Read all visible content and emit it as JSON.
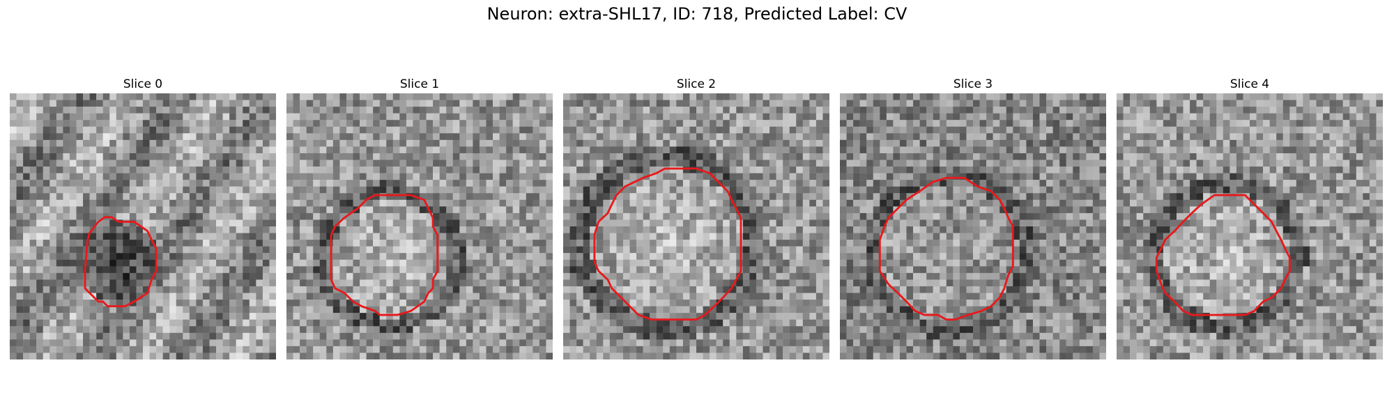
{
  "figure": {
    "title": "Neuron: extra-SHL17, ID: 718, Predicted Label: CV",
    "outline_color": "#e8191c"
  },
  "panels": [
    {
      "title": "Slice 0",
      "region": "dark",
      "outline": [
        [
          13.3,
          19.3
        ],
        [
          14.3,
          18.6
        ],
        [
          15.3,
          18.6
        ],
        [
          16.3,
          19.3
        ],
        [
          18.7,
          19.3
        ],
        [
          20.7,
          20.7
        ],
        [
          21.3,
          22
        ],
        [
          22,
          23.3
        ],
        [
          22,
          26.7
        ],
        [
          21.3,
          28
        ],
        [
          20.7,
          30
        ],
        [
          18.7,
          31.3
        ],
        [
          17.3,
          32
        ],
        [
          14.7,
          32
        ],
        [
          14,
          31.3
        ],
        [
          13.3,
          31.3
        ],
        [
          12,
          30
        ],
        [
          11.3,
          29.3
        ],
        [
          11.3,
          26.7
        ],
        [
          11.7,
          22
        ],
        [
          12,
          21
        ]
      ]
    },
    {
      "title": "Slice 1",
      "region": "bright",
      "outline": [
        [
          12,
          16
        ],
        [
          13.3,
          15.3
        ],
        [
          18.7,
          15.3
        ],
        [
          20.7,
          16
        ],
        [
          21.3,
          17.3
        ],
        [
          22,
          18.7
        ],
        [
          22,
          20
        ],
        [
          22.7,
          21.3
        ],
        [
          22.7,
          26.7
        ],
        [
          22,
          28
        ],
        [
          22,
          29.3
        ],
        [
          21.3,
          30
        ],
        [
          20.7,
          31.3
        ],
        [
          18.7,
          32.7
        ],
        [
          16.7,
          33.3
        ],
        [
          14,
          33.3
        ],
        [
          13.3,
          32.7
        ],
        [
          11.3,
          32
        ],
        [
          10,
          31.3
        ],
        [
          8.7,
          30
        ],
        [
          7.3,
          29.3
        ],
        [
          6.7,
          28
        ],
        [
          6.7,
          21.3
        ],
        [
          7.3,
          20
        ],
        [
          8.7,
          18.7
        ],
        [
          10.7,
          17.3
        ]
      ]
    },
    {
      "title": "Slice 2",
      "region": "bright",
      "outline": [
        [
          14,
          12
        ],
        [
          15.3,
          11.3
        ],
        [
          20,
          11.3
        ],
        [
          22,
          12
        ],
        [
          23.3,
          13.3
        ],
        [
          24.7,
          14.7
        ],
        [
          25.3,
          16
        ],
        [
          26,
          17.3
        ],
        [
          26.7,
          18.7
        ],
        [
          26.7,
          26.7
        ],
        [
          26,
          28
        ],
        [
          25.3,
          29.3
        ],
        [
          24,
          30.7
        ],
        [
          22.7,
          32
        ],
        [
          21.3,
          33.3
        ],
        [
          20,
          34
        ],
        [
          13.3,
          34
        ],
        [
          11.3,
          33.3
        ],
        [
          10,
          32
        ],
        [
          8.7,
          30.7
        ],
        [
          7.3,
          29.3
        ],
        [
          6.7,
          28
        ],
        [
          5.3,
          26.7
        ],
        [
          4.7,
          25.3
        ],
        [
          4.7,
          21.3
        ],
        [
          5.3,
          19.3
        ],
        [
          6.7,
          18
        ],
        [
          7.3,
          16.7
        ],
        [
          8,
          15.3
        ],
        [
          9.3,
          14
        ],
        [
          12,
          12.7
        ]
      ]
    },
    {
      "title": "Slice 3",
      "region": "mixed",
      "outline": [
        [
          14,
          13.3
        ],
        [
          16,
          12.7
        ],
        [
          18.7,
          12.7
        ],
        [
          20.7,
          14
        ],
        [
          22.7,
          14.7
        ],
        [
          24,
          16
        ],
        [
          24.7,
          17.3
        ],
        [
          25.3,
          18.7
        ],
        [
          26,
          20
        ],
        [
          26,
          26
        ],
        [
          25.3,
          27.3
        ],
        [
          24.7,
          29.3
        ],
        [
          24,
          30.7
        ],
        [
          22.7,
          32
        ],
        [
          21.3,
          32.7
        ],
        [
          19.3,
          33.3
        ],
        [
          17.3,
          34
        ],
        [
          16,
          34
        ],
        [
          14.7,
          33.3
        ],
        [
          12.7,
          33.3
        ],
        [
          11.3,
          32.7
        ],
        [
          10,
          31.3
        ],
        [
          8.7,
          30
        ],
        [
          7.3,
          28.7
        ],
        [
          6,
          26.7
        ],
        [
          6,
          22
        ],
        [
          6.7,
          20
        ],
        [
          7.3,
          18.7
        ],
        [
          8.7,
          17.3
        ],
        [
          10,
          16
        ],
        [
          12,
          14.7
        ]
      ]
    },
    {
      "title": "Slice 4",
      "region": "bright",
      "outline": [
        [
          14.7,
          15.3
        ],
        [
          17.3,
          15.3
        ],
        [
          19.3,
          15.3
        ],
        [
          20.7,
          16.7
        ],
        [
          22,
          18
        ],
        [
          23.3,
          19.3
        ],
        [
          24,
          20.7
        ],
        [
          24.7,
          22
        ],
        [
          25.3,
          23.3
        ],
        [
          26,
          24.7
        ],
        [
          26,
          26.7
        ],
        [
          25.3,
          28
        ],
        [
          24.7,
          29.3
        ],
        [
          23.3,
          30.7
        ],
        [
          22,
          31.3
        ],
        [
          20.7,
          32.7
        ],
        [
          19.3,
          33.3
        ],
        [
          11.3,
          33.3
        ],
        [
          10,
          32.7
        ],
        [
          8.7,
          31.3
        ],
        [
          7.3,
          30
        ],
        [
          6.7,
          28.7
        ],
        [
          6,
          26.7
        ],
        [
          6,
          24.7
        ],
        [
          6.7,
          23.3
        ],
        [
          7.3,
          22
        ],
        [
          8.7,
          20.7
        ],
        [
          10,
          19.3
        ],
        [
          11.3,
          18
        ],
        [
          12.7,
          16.7
        ]
      ]
    }
  ]
}
